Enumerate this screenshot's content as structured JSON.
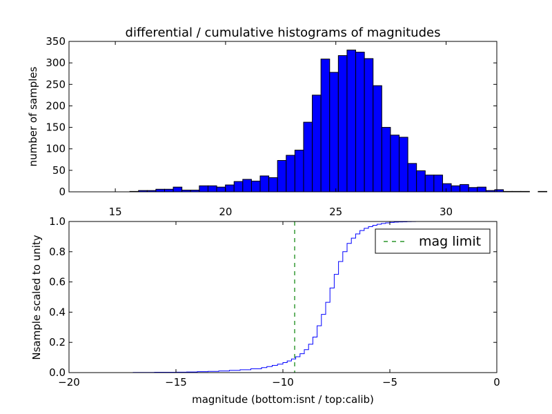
{
  "figure": {
    "title": "differential / cumulative histograms of magnitudes"
  },
  "chart_data": [
    {
      "type": "bar",
      "title": "differential / cumulative histograms of magnitudes",
      "xlabel": "",
      "ylabel": "number of samples",
      "xlim": [
        12.9,
        32.3
      ],
      "ylim": [
        0,
        350
      ],
      "x_ticks": [
        15,
        20,
        25,
        30
      ],
      "y_ticks": [
        0,
        50,
        100,
        150,
        200,
        250,
        300,
        350
      ],
      "x_axis_position": "top",
      "grid": false,
      "bar_color": "#0000ff",
      "bins_start": 12.9,
      "bin_width": 0.394,
      "values": [
        0,
        0,
        0,
        0,
        0,
        0,
        0,
        1,
        3,
        3,
        6,
        6,
        11,
        4,
        4,
        14,
        14,
        11,
        16,
        24,
        29,
        25,
        37,
        33,
        73,
        85,
        97,
        162,
        225,
        309,
        278,
        317,
        330,
        325,
        310,
        247,
        150,
        132,
        127,
        66,
        49,
        39,
        39,
        19,
        14,
        17,
        10,
        11,
        3,
        5,
        1,
        1,
        1,
        0,
        1,
        0,
        0,
        0,
        0,
        0
      ]
    },
    {
      "type": "line",
      "title": "",
      "xlabel": "magnitude (bottom:isnt / top:calib)",
      "ylabel": "Nsample scaled to unity",
      "xlim": [
        -20,
        0
      ],
      "ylim": [
        0,
        1
      ],
      "x_ticks": [
        -20,
        -15,
        -10,
        -5,
        0
      ],
      "x_tick_labels": [
        "−20",
        "−15",
        "−10",
        "−5",
        "0"
      ],
      "y_ticks": [
        0,
        0.2,
        0.4,
        0.6,
        0.8,
        1.0
      ],
      "y_tick_labels": [
        "0.0",
        "0.2",
        "0.4",
        "0.6",
        "0.8",
        "1.0"
      ],
      "step": true,
      "grid": false,
      "line_color": "#0000ff",
      "x": [
        -20,
        -19.5,
        -19,
        -18.5,
        -18,
        -17.5,
        -17,
        -16.5,
        -16,
        -15.5,
        -15,
        -14.5,
        -14,
        -13.5,
        -13,
        -12.5,
        -12,
        -11.5,
        -11,
        -10.75,
        -10.5,
        -10.25,
        -10,
        -9.8,
        -9.6,
        -9.4,
        -9.2,
        -9.0,
        -8.8,
        -8.6,
        -8.4,
        -8.2,
        -8.0,
        -7.8,
        -7.6,
        -7.4,
        -7.2,
        -7.0,
        -6.8,
        -6.6,
        -6.4,
        -6.2,
        -6.0,
        -5.8,
        -5.6,
        -5.4,
        -5.2,
        -5.0,
        -4.8,
        -4.6,
        -4.4,
        -4.2,
        -4.0,
        -3.8,
        -3.6,
        -3.4,
        -3.2,
        -3.0,
        0
      ],
      "y": [
        0,
        0,
        0,
        0,
        0,
        0,
        0.001,
        0.001,
        0.002,
        0.002,
        0.003,
        0.004,
        0.006,
        0.008,
        0.011,
        0.015,
        0.019,
        0.025,
        0.033,
        0.04,
        0.048,
        0.056,
        0.066,
        0.077,
        0.09,
        0.105,
        0.125,
        0.152,
        0.188,
        0.235,
        0.31,
        0.385,
        0.465,
        0.56,
        0.65,
        0.735,
        0.8,
        0.855,
        0.89,
        0.918,
        0.94,
        0.955,
        0.966,
        0.975,
        0.982,
        0.987,
        0.991,
        0.994,
        0.996,
        0.997,
        0.998,
        0.999,
        0.9995,
        1.0,
        1.0,
        1.0,
        1.0,
        1.0,
        1.0
      ],
      "reference_line": {
        "x": -9.45,
        "color": "#008000",
        "style": "dashed",
        "label": "mag limit"
      },
      "legend": {
        "position": "upper right",
        "entries": [
          "mag limit"
        ]
      }
    }
  ]
}
